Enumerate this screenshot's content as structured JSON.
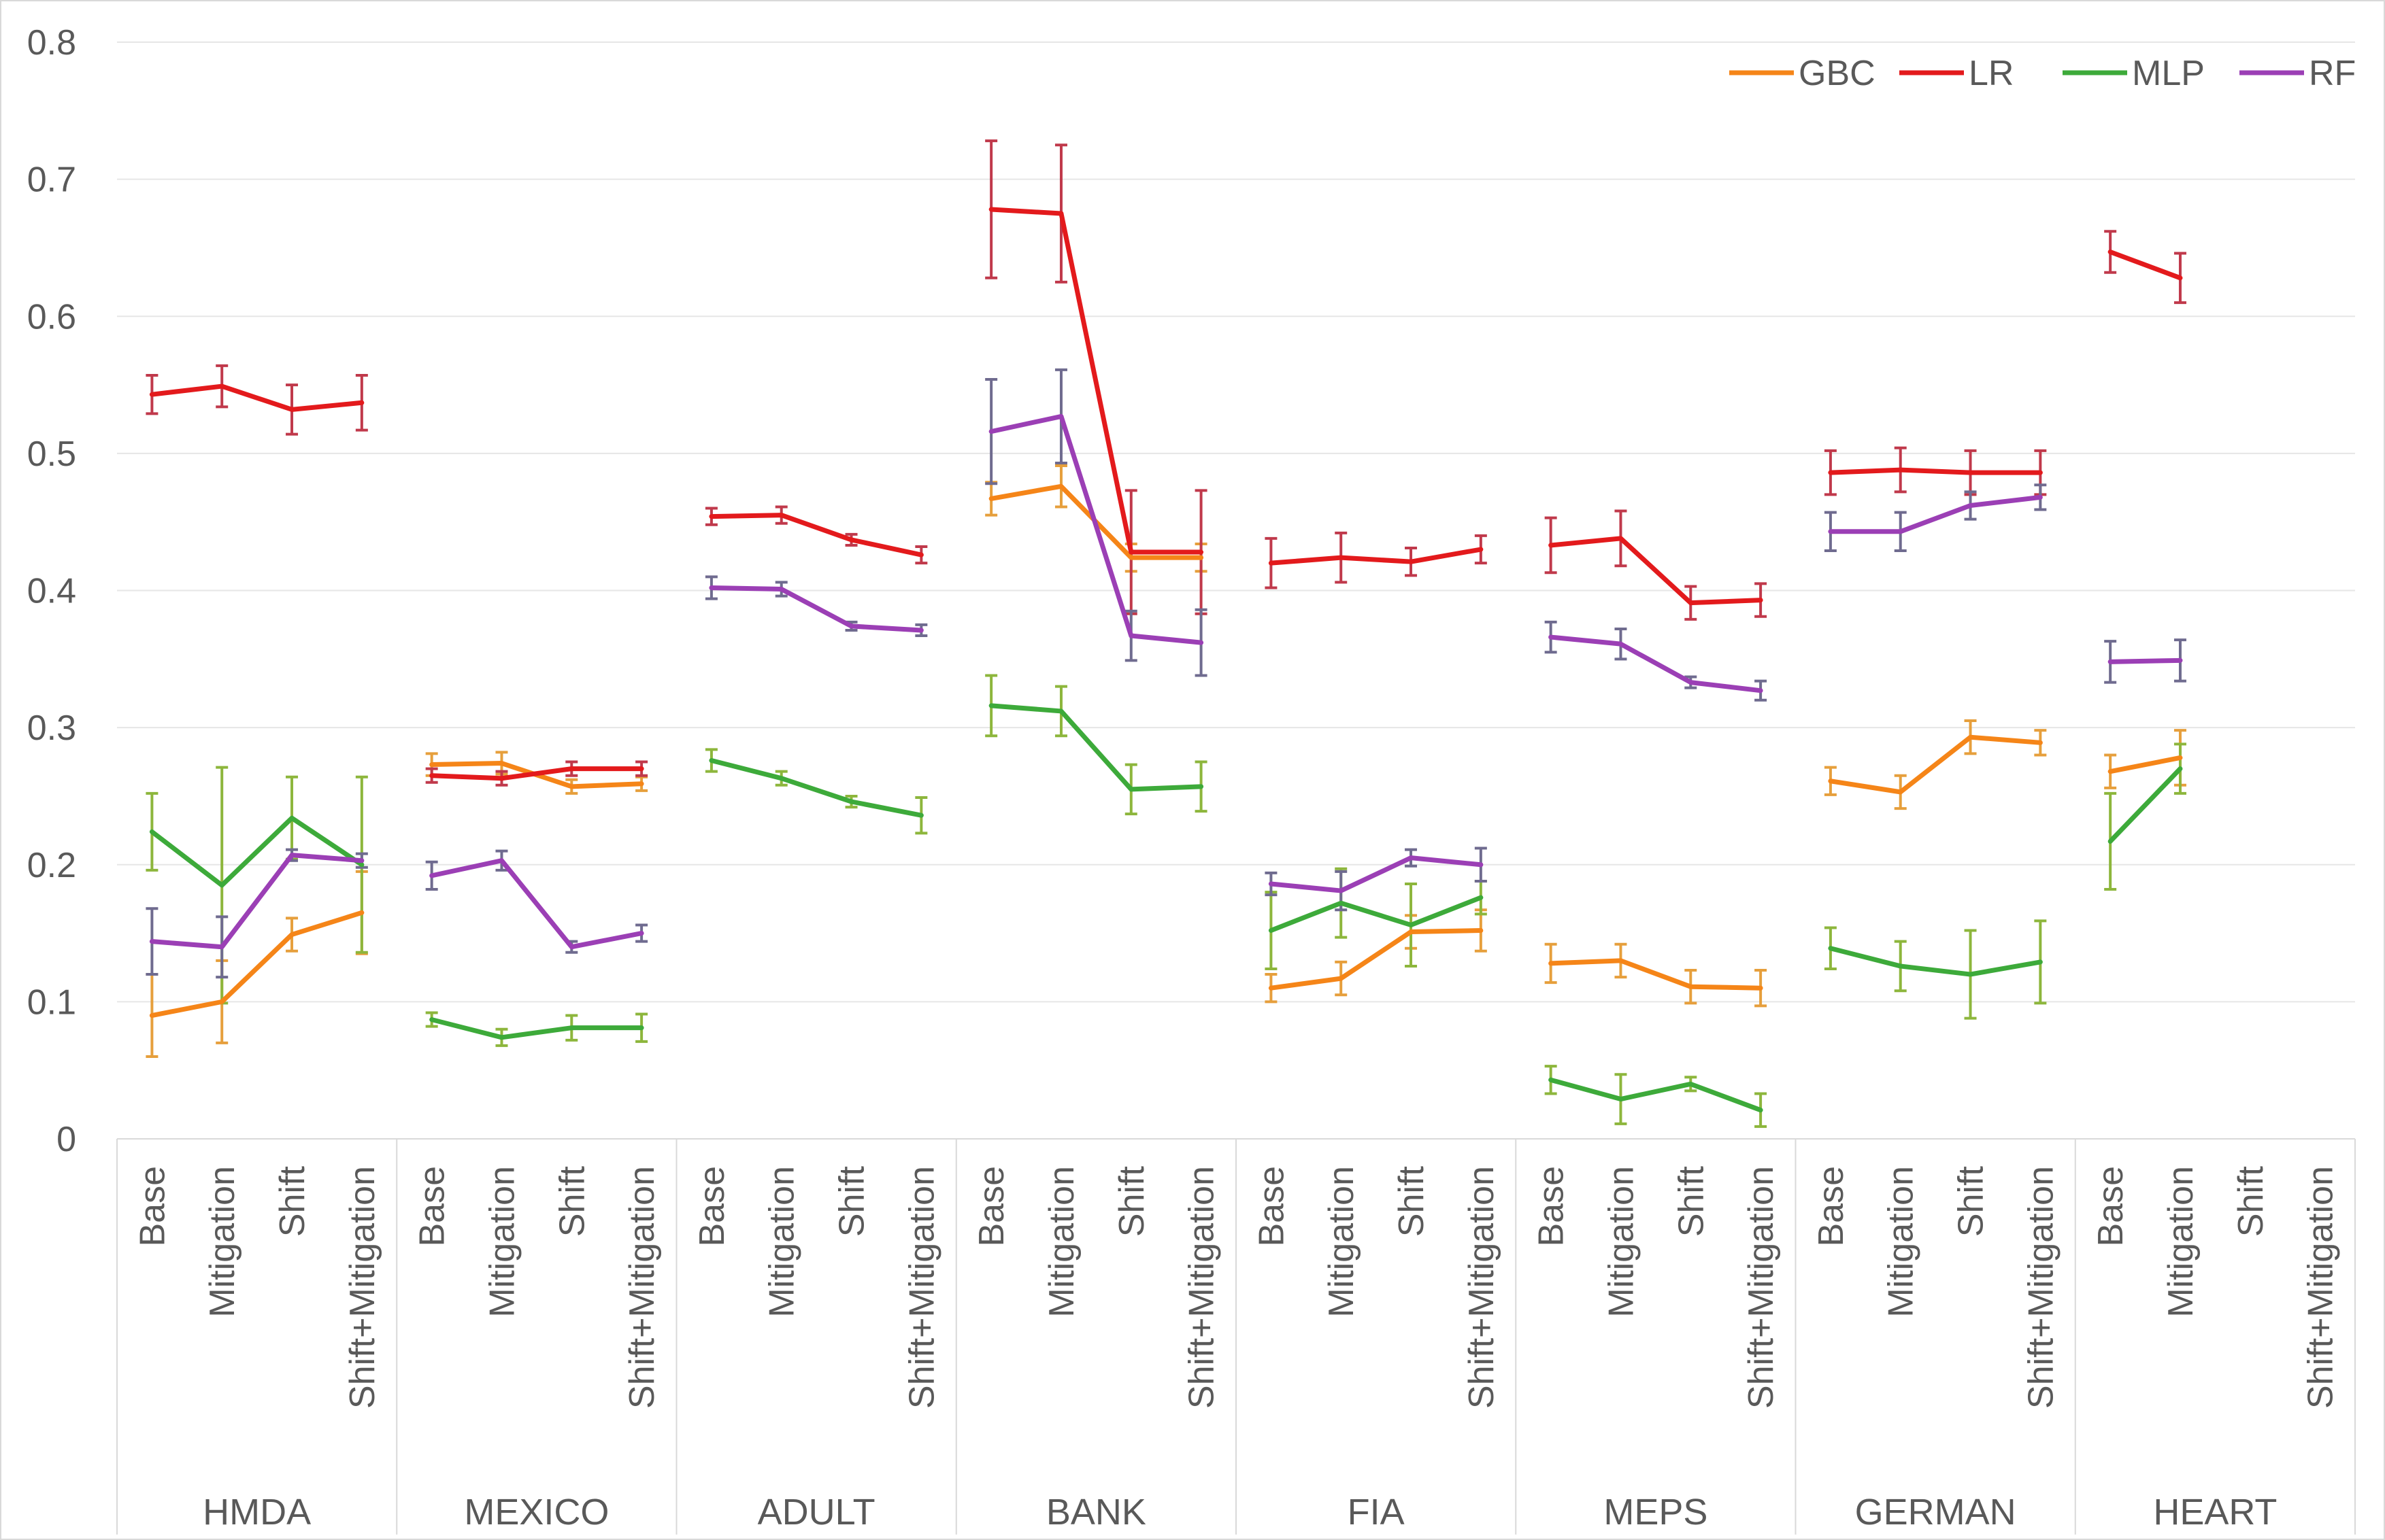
{
  "chart_data": {
    "type": "line",
    "title": "",
    "xlabel": "",
    "ylabel": "",
    "ylim": [
      0,
      0.8
    ],
    "yticks": [
      0,
      0.1,
      0.2,
      0.3,
      0.4,
      0.5,
      0.6,
      0.7,
      0.8
    ],
    "ytick_labels": [
      "0",
      "0.1",
      "0.2",
      "0.3",
      "0.4",
      "0.5",
      "0.6",
      "0.7",
      "0.8"
    ],
    "grid": true,
    "legend_position": "top-right",
    "groups": [
      "HMDA",
      "MEXICO",
      "ADULT",
      "BANK",
      "FIA",
      "MEPS",
      "GERMAN",
      "HEART"
    ],
    "categories": [
      "Base",
      "Mitigation",
      "Shift",
      "Shift+Mitigation"
    ],
    "series": [
      {
        "name": "GBC",
        "color": "#F58518",
        "errcolor": "#E69F3C",
        "values": [
          [
            0.09,
            0.1,
            0.149,
            0.165
          ],
          [
            0.273,
            0.274,
            0.257,
            0.259
          ],
          [
            null,
            null,
            null,
            null
          ],
          [
            0.467,
            0.476,
            0.424,
            0.424
          ],
          [
            0.11,
            0.117,
            0.151,
            0.152
          ],
          [
            0.128,
            0.13,
            0.111,
            0.11
          ],
          [
            0.261,
            0.253,
            0.293,
            0.289
          ],
          [
            0.268,
            0.278,
            null,
            null
          ]
        ],
        "errors": [
          [
            0.03,
            0.03,
            0.012,
            0.03
          ],
          [
            0.008,
            0.008,
            0.005,
            0.005
          ],
          [
            null,
            null,
            null,
            null
          ],
          [
            0.012,
            0.015,
            0.01,
            0.01
          ],
          [
            0.01,
            0.012,
            0.012,
            0.015
          ],
          [
            0.014,
            0.012,
            0.012,
            0.013
          ],
          [
            0.01,
            0.012,
            0.012,
            0.009
          ],
          [
            0.012,
            0.02,
            null,
            null
          ]
        ]
      },
      {
        "name": "LR",
        "color": "#E31A1C",
        "errcolor": "#C0394B",
        "values": [
          [
            0.543,
            0.549,
            0.532,
            0.537
          ],
          [
            0.265,
            0.263,
            0.27,
            0.27
          ],
          [
            0.454,
            0.455,
            0.437,
            0.426
          ],
          [
            0.678,
            0.675,
            0.428,
            0.428
          ],
          [
            0.42,
            0.424,
            0.421,
            0.43
          ],
          [
            0.433,
            0.438,
            0.391,
            0.393
          ],
          [
            0.486,
            0.488,
            0.486,
            0.486
          ],
          [
            0.647,
            0.628,
            null,
            null
          ]
        ],
        "errors": [
          [
            0.014,
            0.015,
            0.018,
            0.02
          ],
          [
            0.005,
            0.005,
            0.005,
            0.005
          ],
          [
            0.006,
            0.006,
            0.004,
            0.006
          ],
          [
            0.05,
            0.05,
            0.045,
            0.045
          ],
          [
            0.018,
            0.018,
            0.01,
            0.01
          ],
          [
            0.02,
            0.02,
            0.012,
            0.012
          ],
          [
            0.016,
            0.016,
            0.016,
            0.016
          ],
          [
            0.015,
            0.018,
            null,
            null
          ]
        ]
      },
      {
        "name": "MLP",
        "color": "#3DAA3A",
        "errcolor": "#8DB63C",
        "values": [
          [
            0.224,
            0.185,
            0.234,
            0.2
          ],
          [
            0.087,
            0.074,
            0.081,
            0.081
          ],
          [
            0.276,
            0.263,
            0.246,
            0.236
          ],
          [
            0.316,
            0.312,
            0.255,
            0.257
          ],
          [
            0.152,
            0.172,
            0.156,
            0.176
          ],
          [
            0.043,
            0.029,
            0.04,
            0.021
          ],
          [
            0.139,
            0.126,
            0.12,
            0.129
          ],
          [
            0.217,
            0.27,
            null,
            null
          ]
        ],
        "errors": [
          [
            0.028,
            0.086,
            0.03,
            0.064
          ],
          [
            0.005,
            0.006,
            0.009,
            0.01
          ],
          [
            0.008,
            0.005,
            0.004,
            0.013
          ],
          [
            0.022,
            0.018,
            0.018,
            0.018
          ],
          [
            0.028,
            0.025,
            0.03,
            0.012
          ],
          [
            0.01,
            0.018,
            0.005,
            0.012
          ],
          [
            0.015,
            0.018,
            0.032,
            0.03
          ],
          [
            0.035,
            0.018,
            null,
            null
          ]
        ]
      },
      {
        "name": "RF",
        "color": "#9B3FB5",
        "errcolor": "#6F6B8F",
        "values": [
          [
            0.144,
            0.14,
            0.207,
            0.203
          ],
          [
            0.192,
            0.203,
            0.14,
            0.15
          ],
          [
            0.402,
            0.401,
            0.374,
            0.371
          ],
          [
            0.516,
            0.527,
            0.367,
            0.362
          ],
          [
            0.186,
            0.181,
            0.205,
            0.2
          ],
          [
            0.366,
            0.361,
            0.333,
            0.327
          ],
          [
            0.443,
            0.443,
            0.462,
            0.468
          ],
          [
            0.348,
            0.349,
            null,
            null
          ]
        ],
        "errors": [
          [
            0.024,
            0.022,
            0.004,
            0.005
          ],
          [
            0.01,
            0.007,
            0.004,
            0.006
          ],
          [
            0.008,
            0.005,
            0.003,
            0.004
          ],
          [
            0.038,
            0.034,
            0.018,
            0.024
          ],
          [
            0.008,
            0.014,
            0.006,
            0.012
          ],
          [
            0.011,
            0.011,
            0.004,
            0.007
          ],
          [
            0.014,
            0.014,
            0.01,
            0.009
          ],
          [
            0.015,
            0.015,
            null,
            null
          ]
        ]
      }
    ]
  }
}
